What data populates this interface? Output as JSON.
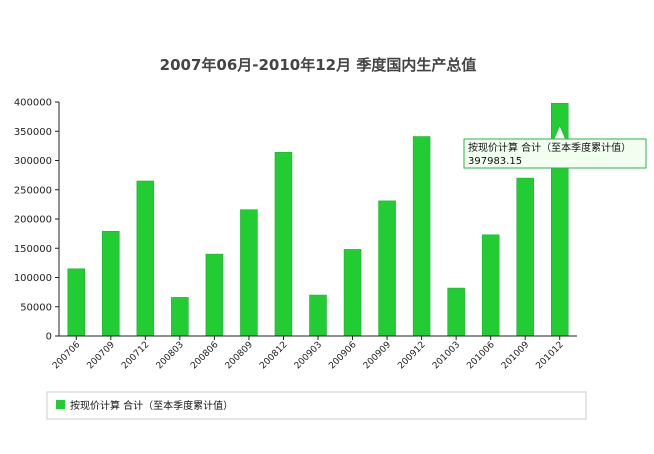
{
  "chart_data": {
    "type": "bar",
    "title": "2007年06月-2010年12月 季度国内生产总值",
    "categories": [
      "200706",
      "200709",
      "200712",
      "200803",
      "200806",
      "200809",
      "200812",
      "200903",
      "200906",
      "200909",
      "200912",
      "201003",
      "201006",
      "201009",
      "201012"
    ],
    "series": [
      {
        "name": "按现价计算 合计（至本季度累计值）",
        "values": [
          115000,
          179000,
          265000,
          66000,
          140000,
          216000,
          314000,
          70000,
          148000,
          231000,
          341000,
          82000,
          173000,
          270000,
          397983.15
        ]
      }
    ],
    "ylim": [
      0,
      400000
    ],
    "yticks": [
      "0",
      "50000",
      "100000",
      "150000",
      "200000",
      "250000",
      "300000",
      "350000",
      "400000"
    ],
    "bar_color": "#22cc33",
    "grid": false,
    "legend_position": "bottom",
    "tooltip": {
      "series_label": "按现价计算 合计（至本季度累计值）",
      "value_text": "397983.15",
      "target_index": 14
    }
  }
}
